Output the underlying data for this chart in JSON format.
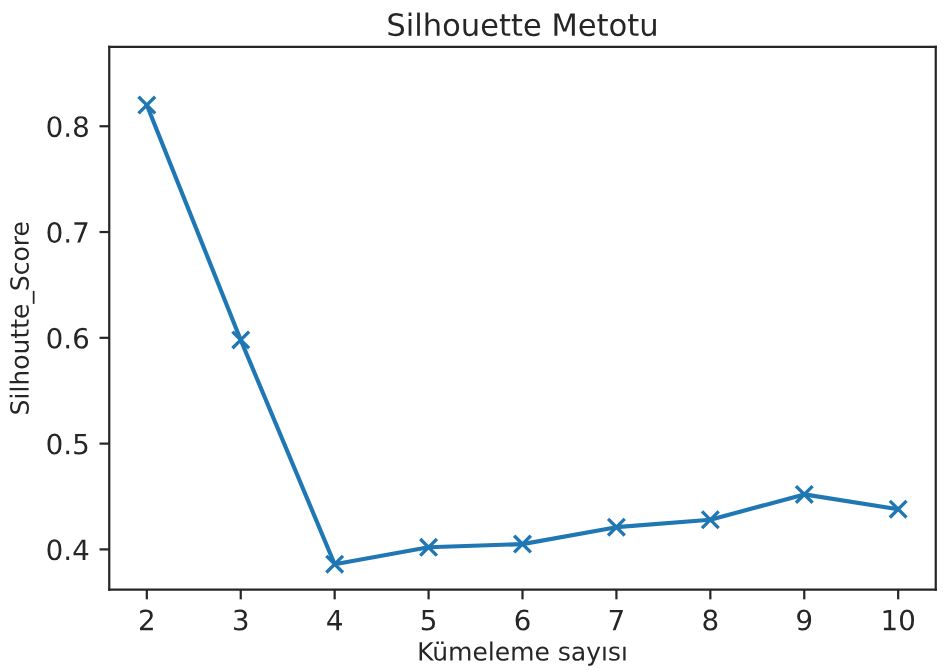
{
  "chart_data": {
    "type": "line",
    "title": "Silhouette Metotu",
    "xlabel": "Kümeleme sayısı",
    "ylabel": "Silhoutte_Score",
    "x": [
      2,
      3,
      4,
      5,
      6,
      7,
      8,
      9,
      10
    ],
    "series": [
      {
        "color": "#1f77b4",
        "values": [
          0.82,
          0.598,
          0.386,
          0.402,
          0.405,
          0.421,
          0.428,
          0.452,
          0.438
        ]
      }
    ],
    "xlim": [
      1.6,
      10.4
    ],
    "ylim": [
      0.362,
      0.875
    ],
    "xticks": [
      2,
      3,
      4,
      5,
      6,
      7,
      8,
      9,
      10
    ],
    "yticks": [
      0.4,
      0.5,
      0.6,
      0.7,
      0.8
    ],
    "marker": "cross",
    "line_style": "solid",
    "grid": false,
    "legend": false
  }
}
